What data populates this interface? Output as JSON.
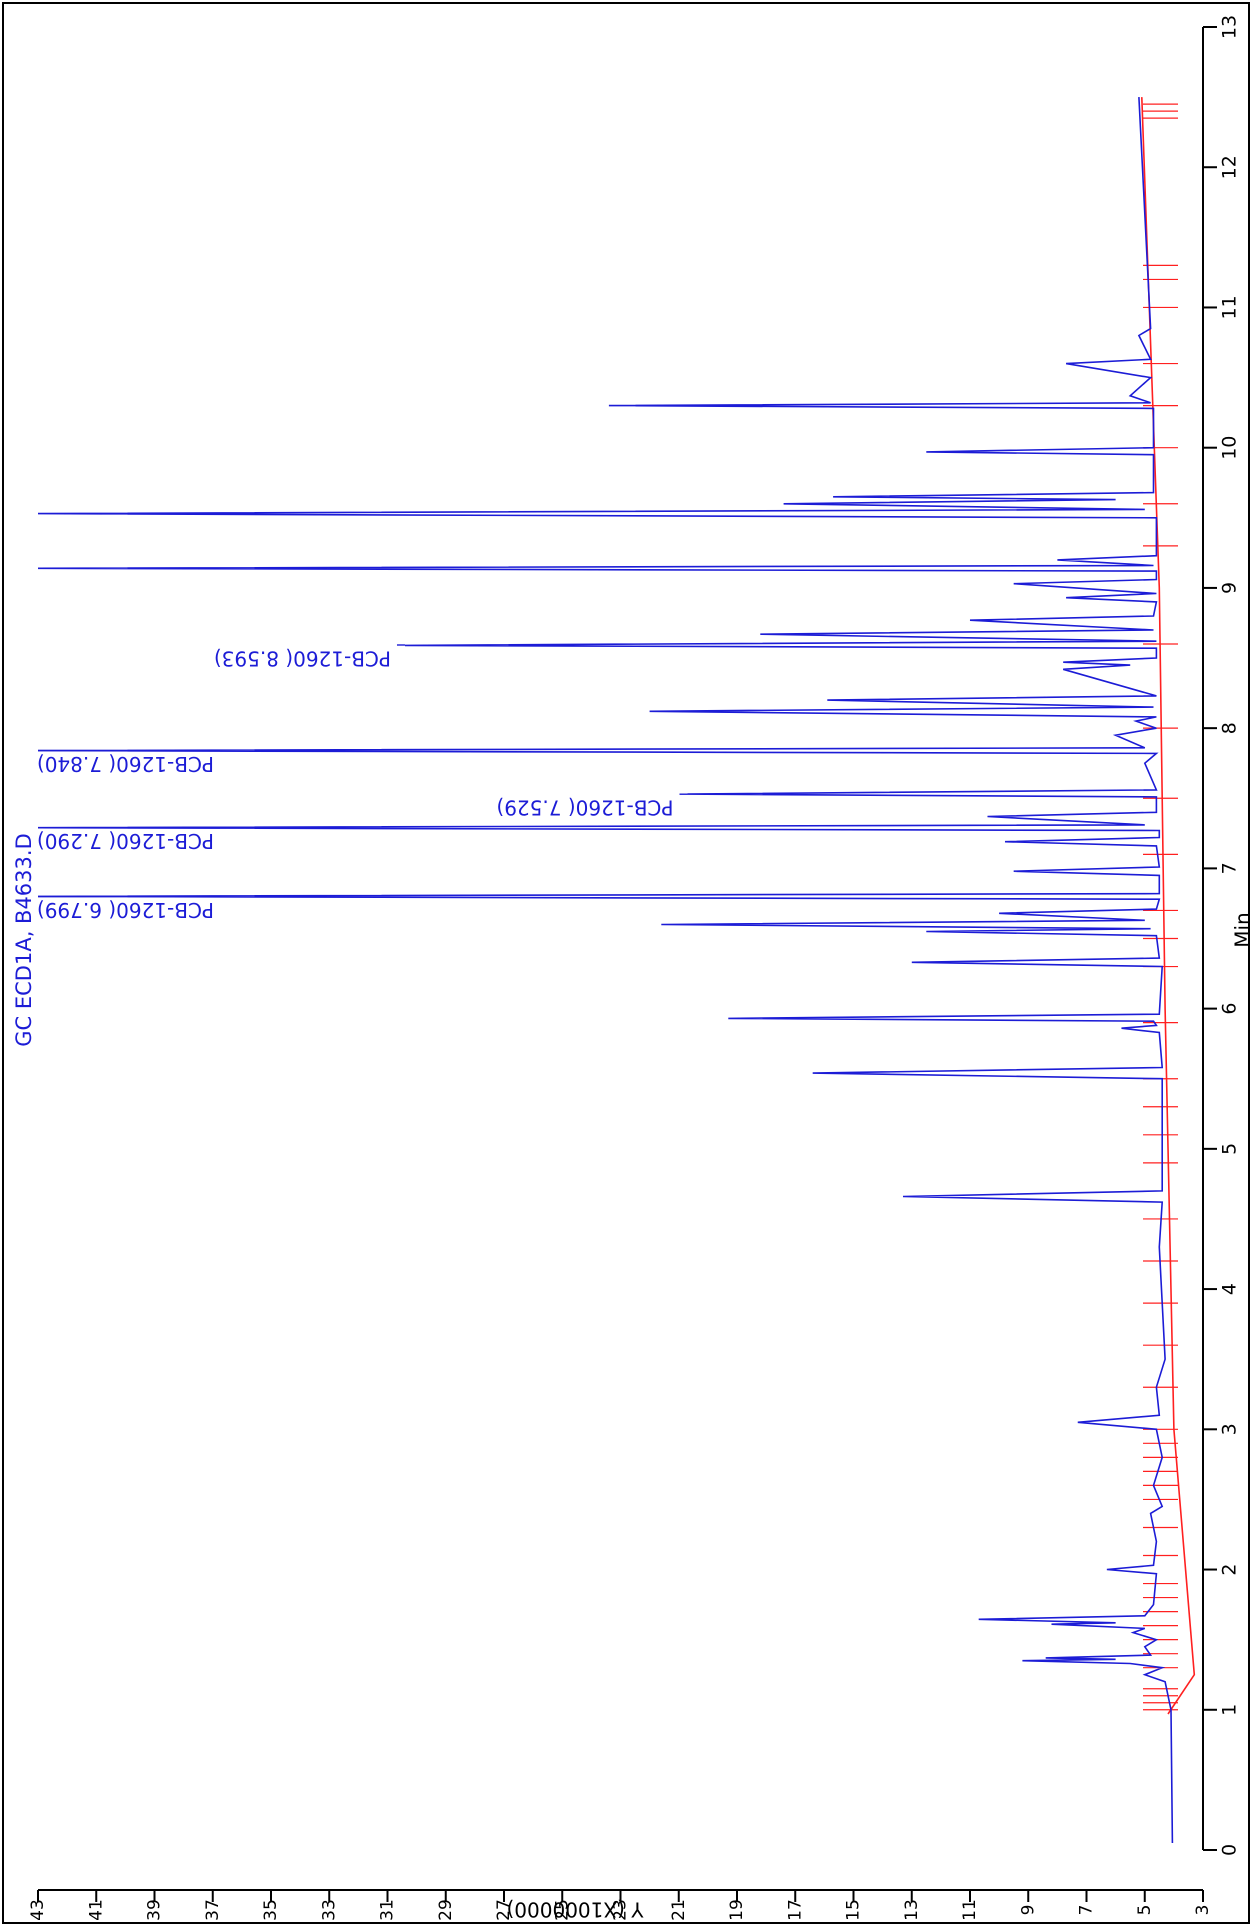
{
  "chart_data": {
    "type": "line",
    "title": "GC ECD1A, B4633.D",
    "x_label": "Min",
    "y_label": "Y (X1000000)",
    "xlim": [
      0,
      13
    ],
    "xticks": [
      0,
      1,
      2,
      3,
      4,
      5,
      6,
      7,
      8,
      9,
      10,
      11,
      12,
      13
    ],
    "ylim": [
      3,
      43
    ],
    "yticks": [
      3,
      5,
      7,
      9,
      11,
      13,
      15,
      17,
      19,
      21,
      23,
      25,
      27,
      29,
      31,
      33,
      35,
      37,
      39,
      41,
      43
    ],
    "series": [
      {
        "color": "#1c1cd6",
        "x": [
          0.05,
          1.0,
          1.2,
          1.25,
          1.3,
          1.33,
          1.35,
          1.36,
          1.37,
          1.39,
          1.45,
          1.5,
          1.55,
          1.58,
          1.61,
          1.62,
          1.645,
          1.67,
          1.75,
          1.97,
          2.0,
          2.03,
          2.2,
          2.4,
          2.45,
          2.6,
          2.8,
          3.0,
          3.05,
          3.1,
          3.3,
          3.5,
          4.3,
          4.62,
          4.66,
          4.7,
          5.5,
          5.54,
          5.58,
          5.83,
          5.86,
          5.88,
          5.91,
          5.93,
          5.96,
          6.3,
          6.33,
          6.36,
          6.52,
          6.55,
          6.57,
          6.6,
          6.63,
          6.68,
          6.71,
          6.78,
          6.8,
          6.82,
          6.95,
          6.98,
          7.01,
          7.16,
          7.19,
          7.22,
          7.27,
          7.29,
          7.31,
          7.37,
          7.4,
          7.51,
          7.53,
          7.56,
          7.75,
          7.82,
          7.84,
          7.86,
          7.95,
          8.0,
          8.05,
          8.08,
          8.12,
          8.15,
          8.2,
          8.23,
          8.42,
          8.45,
          8.47,
          8.5,
          8.57,
          8.59,
          8.62,
          8.67,
          8.7,
          8.77,
          8.8,
          8.9,
          8.93,
          8.96,
          9.03,
          9.06,
          9.12,
          9.14,
          9.16,
          9.2,
          9.23,
          9.5,
          9.53,
          9.56,
          9.6,
          9.63,
          9.65,
          9.68,
          9.95,
          9.97,
          10.0,
          10.28,
          10.3,
          10.32,
          10.37,
          10.5,
          10.6,
          10.63,
          10.8,
          10.85,
          12.5
        ],
        "values": [
          4.05,
          4.1,
          4.3,
          5.0,
          4.4,
          5.5,
          9.2,
          6.0,
          8.4,
          4.8,
          5.0,
          4.6,
          5.4,
          5.0,
          8.2,
          6.0,
          10.7,
          5.0,
          4.7,
          4.6,
          6.3,
          4.7,
          4.6,
          4.8,
          4.4,
          4.7,
          4.4,
          4.6,
          7.3,
          4.5,
          4.6,
          4.3,
          4.5,
          4.4,
          13.3,
          4.4,
          4.4,
          16.4,
          4.4,
          4.5,
          5.8,
          4.6,
          4.7,
          19.3,
          4.5,
          4.4,
          13.0,
          4.5,
          4.6,
          12.5,
          4.8,
          21.6,
          5.0,
          10.0,
          4.6,
          4.5,
          43,
          4.5,
          4.5,
          9.5,
          4.5,
          4.6,
          9.8,
          4.5,
          4.5,
          43,
          5.0,
          10.4,
          4.6,
          4.6,
          20.7,
          4.6,
          5.0,
          4.6,
          43,
          5.0,
          6.0,
          4.6,
          5.3,
          4.6,
          22.0,
          4.7,
          15.9,
          4.6,
          7.8,
          5.5,
          7.8,
          4.6,
          4.6,
          30.4,
          4.6,
          18.2,
          4.7,
          11.0,
          4.7,
          4.6,
          7.7,
          4.6,
          9.5,
          4.6,
          4.6,
          43,
          4.7,
          8.0,
          4.6,
          4.6,
          43,
          5.0,
          17.4,
          6.0,
          15.7,
          4.7,
          4.7,
          12.5,
          4.7,
          4.7,
          23.4,
          4.8,
          5.5,
          4.8,
          7.7,
          4.8,
          5.2,
          4.8,
          5.2
        ]
      },
      {
        "color": "#ff2020",
        "x": [
          0.97,
          1.25,
          3.0,
          6.0,
          9.0,
          12.5
        ],
        "values": [
          4.2,
          3.3,
          4.0,
          4.3,
          4.5,
          5.1
        ]
      }
    ],
    "events": {
      "color": "#ff2020",
      "x": [
        1.0,
        1.05,
        1.1,
        1.15,
        1.3,
        1.4,
        1.5,
        1.6,
        1.7,
        1.8,
        1.9,
        2.1,
        2.3,
        2.5,
        2.6,
        2.7,
        2.8,
        2.9,
        3.0,
        3.3,
        3.6,
        3.9,
        4.2,
        4.5,
        4.9,
        5.1,
        5.3,
        5.5,
        5.9,
        6.3,
        6.5,
        6.7,
        7.1,
        7.5,
        8.0,
        8.6,
        9.3,
        9.6,
        10.0,
        10.3,
        10.6,
        11.0,
        11.2,
        11.3,
        12.35,
        12.4,
        12.45
      ]
    },
    "annotations": [
      {
        "text": "PCB-1260( 6.799)",
        "x": 6.799,
        "y": 43
      },
      {
        "text": "PCB-1260( 7.290)",
        "x": 7.29,
        "y": 43
      },
      {
        "text": "PCB-1260( 7.529)",
        "x": 7.529,
        "y": 20.7
      },
      {
        "text": "PCB-1260( 7.840)",
        "x": 7.84,
        "y": 43
      },
      {
        "text": "PCB-1260( 8.593)",
        "x": 8.593,
        "y": 30.4
      }
    ]
  }
}
